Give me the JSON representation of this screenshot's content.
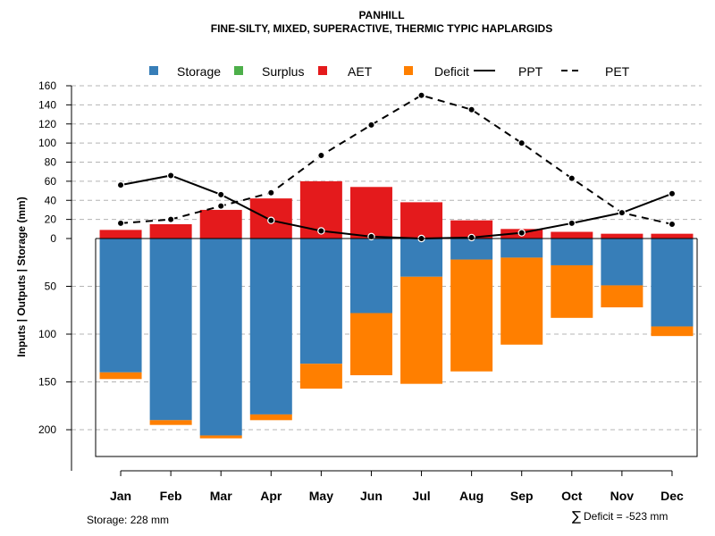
{
  "chart_data": {
    "type": "bar",
    "title": "PANHILL",
    "subtitle": "FINE-SILTY, MIXED, SUPERACTIVE, THERMIC TYPIC HAPLARGIDS",
    "ylabel": "Inputs | Outputs | Storage    (mm)",
    "categories": [
      "Jan",
      "Feb",
      "Mar",
      "Apr",
      "May",
      "Jun",
      "Jul",
      "Aug",
      "Sep",
      "Oct",
      "Nov",
      "Dec"
    ],
    "upper_axis": {
      "range": [
        0,
        160
      ],
      "ticks": [
        "0",
        "20",
        "40",
        "60",
        "80",
        "100",
        "120",
        "140",
        "160"
      ]
    },
    "lower_axis": {
      "range": [
        0,
        228
      ],
      "ticks": [
        "50",
        "100",
        "150",
        "200"
      ]
    },
    "legend": [
      {
        "name": "Storage",
        "symbol": "square",
        "color": "#377eb8"
      },
      {
        "name": "Surplus",
        "symbol": "square",
        "color": "#4daf4a"
      },
      {
        "name": "AET",
        "symbol": "square",
        "color": "#e41a1c"
      },
      {
        "name": "Deficit",
        "symbol": "square",
        "color": "#ff7f00"
      },
      {
        "name": "PPT",
        "symbol": "solid-line",
        "color": "#000000"
      },
      {
        "name": "PET",
        "symbol": "dashed-line",
        "color": "#000000"
      }
    ],
    "series": [
      {
        "name": "AET",
        "values": [
          9,
          15,
          30,
          42,
          60,
          54,
          38,
          19,
          10,
          7,
          5,
          5
        ]
      },
      {
        "name": "Storage",
        "values": [
          140,
          190,
          206,
          184,
          131,
          78,
          40,
          22,
          20,
          28,
          49,
          92
        ]
      },
      {
        "name": "Deficit",
        "values": [
          7,
          5,
          3,
          6,
          26,
          65,
          112,
          117,
          91,
          55,
          23,
          10
        ]
      },
      {
        "name": "Surplus",
        "values": [
          0,
          0,
          0,
          0,
          0,
          0,
          0,
          0,
          0,
          0,
          0,
          0
        ]
      },
      {
        "name": "PPT",
        "values": [
          56,
          66,
          46,
          19,
          8,
          2,
          0,
          1,
          6,
          16,
          27,
          47
        ]
      },
      {
        "name": "PET",
        "values": [
          16,
          20,
          34,
          48,
          87,
          119,
          150,
          135,
          100,
          63,
          27,
          15
        ]
      }
    ],
    "colors": {
      "storage": "#377eb8",
      "surplus": "#4daf4a",
      "aet": "#e41a1c",
      "deficit": "#ff7f00",
      "line": "#000000"
    }
  },
  "footer": {
    "storage_label": "Storage: 228 mm",
    "deficit_symbol": "∑",
    "deficit_label": "Deficit = -523 mm"
  }
}
